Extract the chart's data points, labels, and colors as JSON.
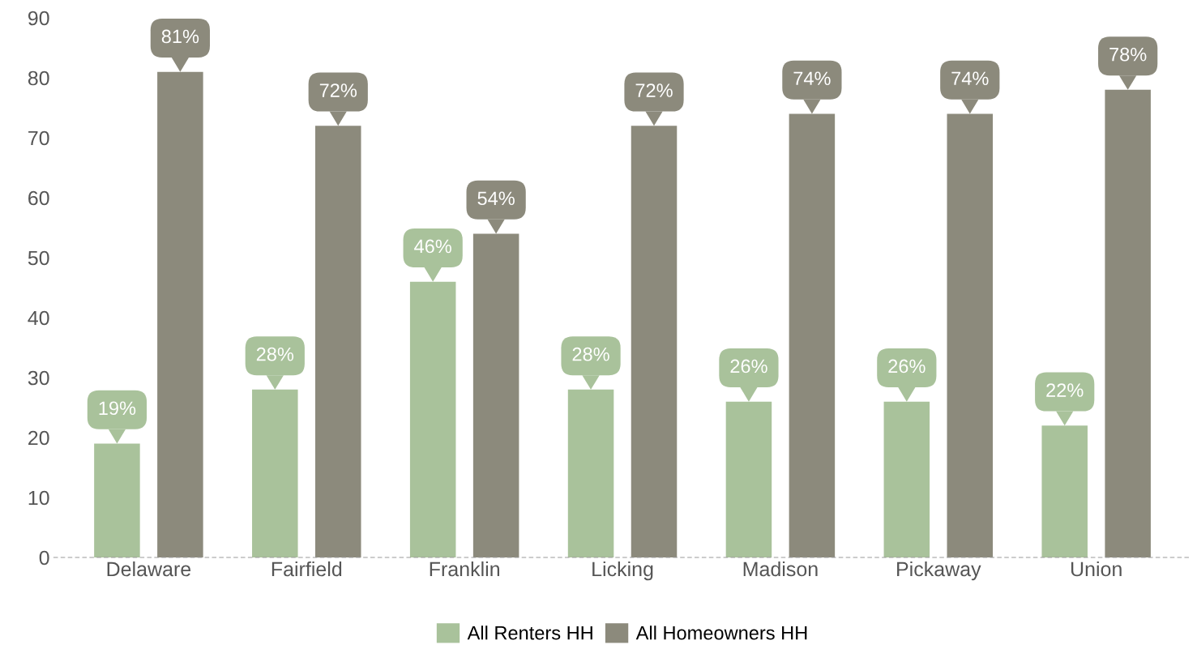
{
  "chart_data": {
    "type": "bar",
    "categories": [
      "Delaware",
      "Fairfield",
      "Franklin",
      "Licking",
      "Madison",
      "Pickaway",
      "Union"
    ],
    "series": [
      {
        "name": "All Renters HH",
        "color": "#a9c29b",
        "values": [
          19,
          28,
          46,
          28,
          26,
          26,
          22
        ],
        "value_labels": [
          "19%",
          "28%",
          "46%",
          "28%",
          "26%",
          "26%",
          "22%"
        ]
      },
      {
        "name": "All Homeowners HH",
        "color": "#8c8a7c",
        "values": [
          81,
          72,
          54,
          72,
          74,
          74,
          78
        ],
        "value_labels": [
          "81%",
          "72%",
          "54%",
          "72%",
          "74%",
          "74%",
          "78%"
        ]
      }
    ],
    "ylim": [
      0,
      90
    ],
    "yticks": [
      0,
      10,
      20,
      30,
      40,
      50,
      60,
      70,
      80,
      90
    ],
    "grid": false,
    "legend": "bottom"
  }
}
